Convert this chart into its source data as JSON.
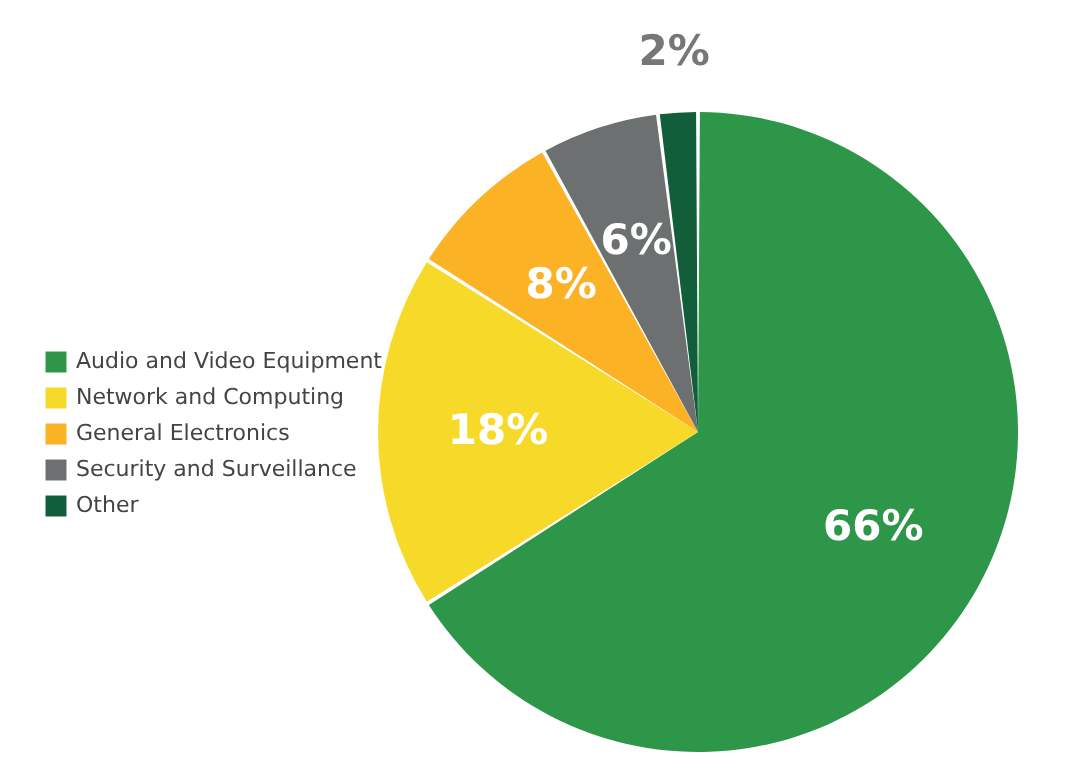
{
  "chart_data": {
    "type": "pie",
    "categories": [
      "Audio and Video Equipment",
      "Network and Computing",
      "General Electronics",
      "Security and Surveillance",
      "Other"
    ],
    "values": [
      66,
      18,
      8,
      6,
      2
    ],
    "value_labels": [
      "66%",
      "18%",
      "8%",
      "6%",
      "2%"
    ],
    "colors": [
      "#2e9648",
      "#f7d92a",
      "#fbb225",
      "#6d7070",
      "#135e3a"
    ],
    "legend": "left"
  }
}
